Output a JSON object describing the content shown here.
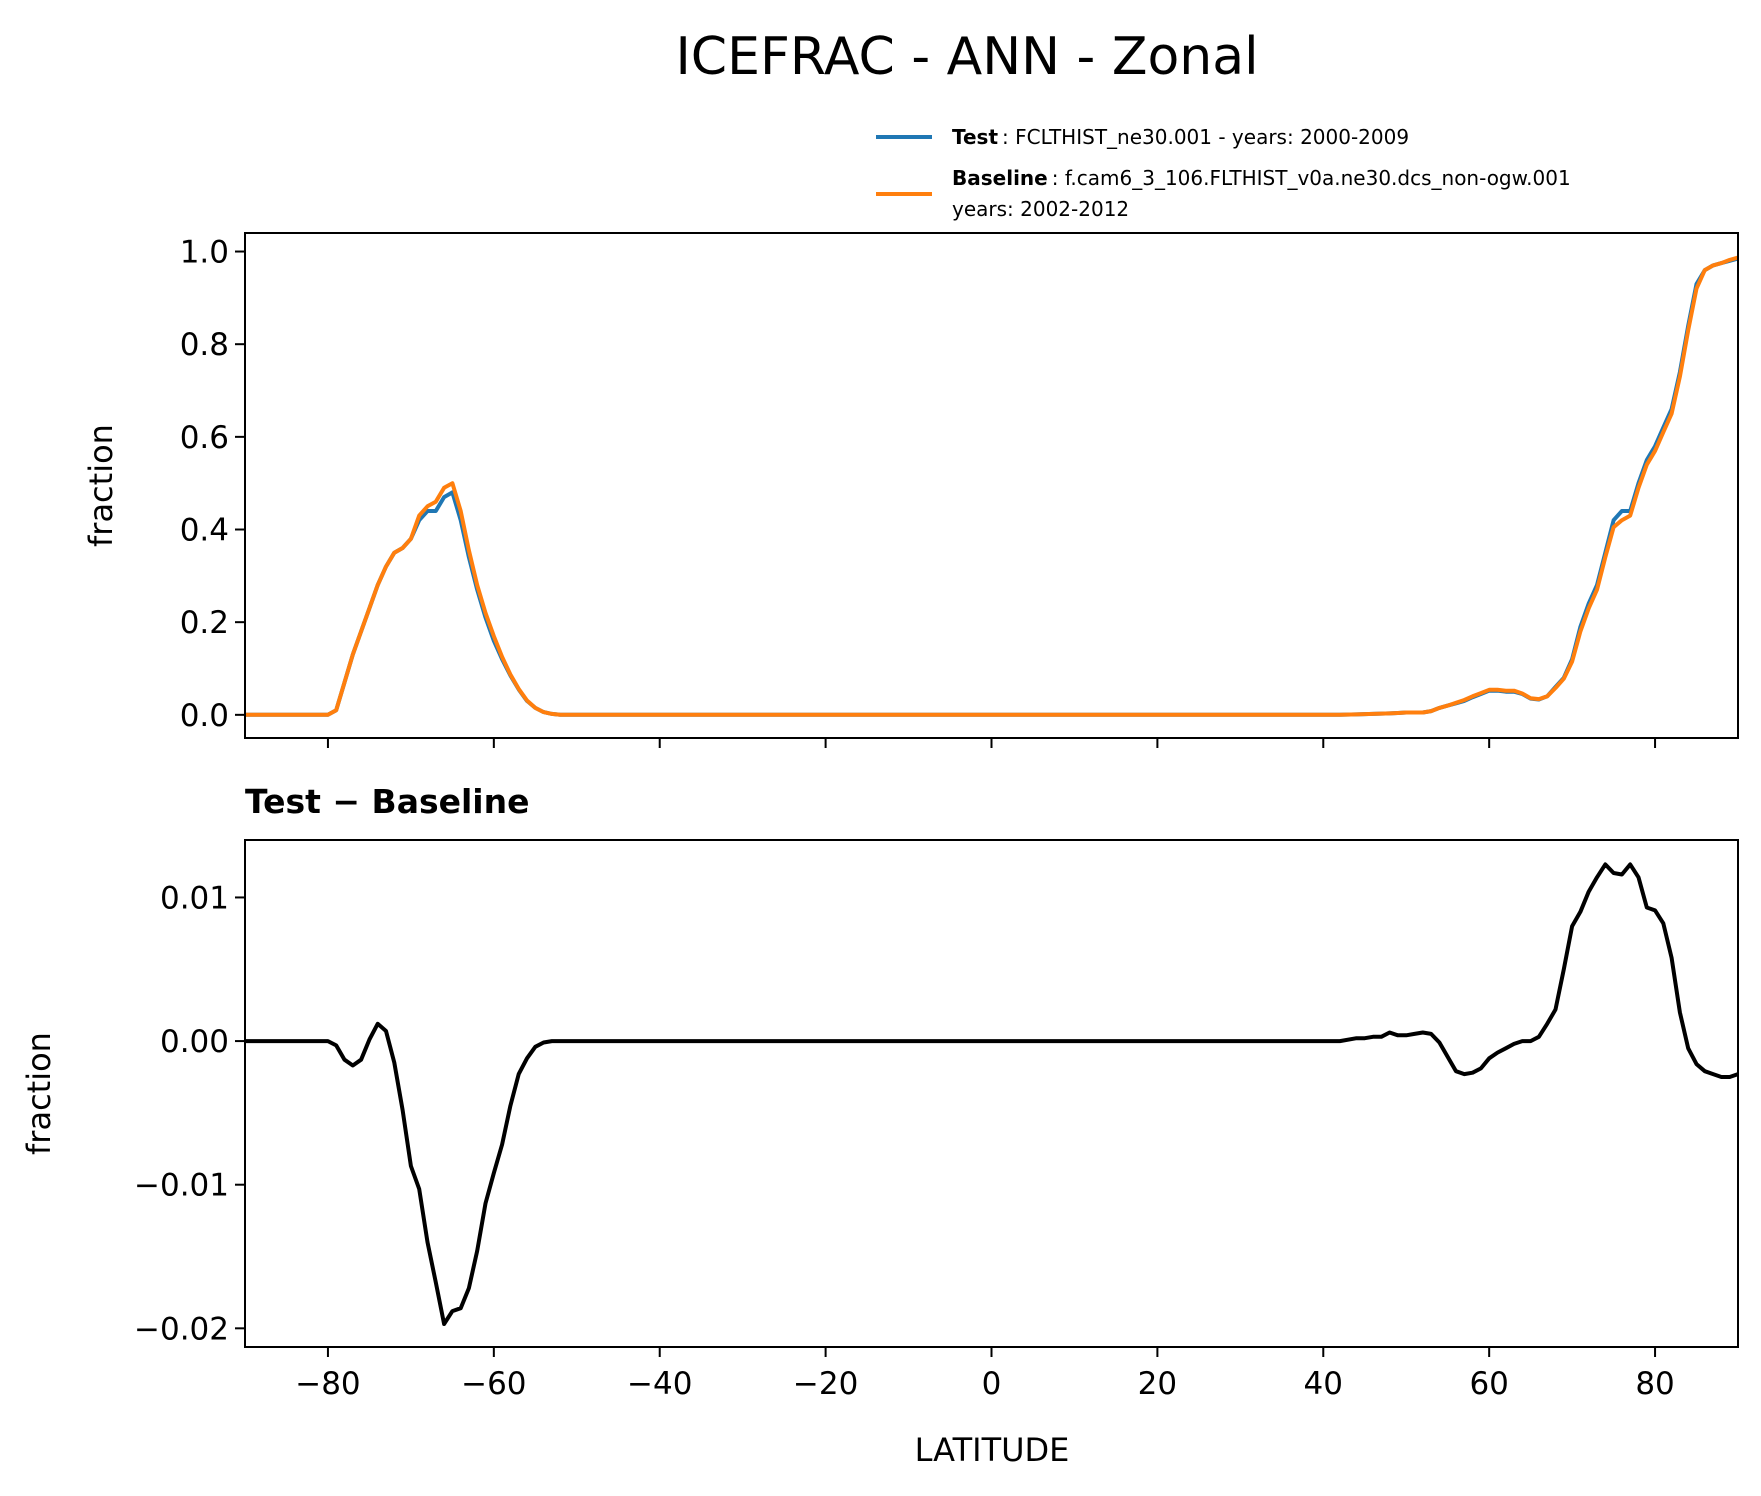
{
  "figure": {
    "title": "ICEFRAC - ANN - Zonal"
  },
  "legend": {
    "test_key": "Test",
    "test_text": ": FCLTHIST_ne30.001 - years: 2000-2009",
    "baseline_key": "Baseline",
    "baseline_text": ": f.cam6_3_106.FLTHIST_v0a.ne30.dcs_non-ogw.001",
    "baseline_text2": "years: 2002-2012"
  },
  "chart_data": [
    {
      "type": "line",
      "title": "",
      "xlabel": "",
      "ylabel": "fraction",
      "xlim": [
        -90,
        90
      ],
      "ylim": [
        -0.05,
        1.04
      ],
      "xticks": [
        -80,
        -60,
        -40,
        -20,
        0,
        20,
        40,
        60,
        80
      ],
      "yticks": [
        0.0,
        0.2,
        0.4,
        0.6,
        0.8,
        1.0
      ],
      "ytick_labels": [
        "0.0",
        "0.2",
        "0.4",
        "0.6",
        "0.8",
        "1.0"
      ],
      "legend_position": "above-right",
      "series": [
        {
          "name": "Test",
          "color": "#1f77b4",
          "x": [
            -90,
            -89,
            -88,
            -87,
            -86,
            -85,
            -84,
            -83,
            -82,
            -81,
            -80,
            -79,
            -78,
            -77,
            -76,
            -75,
            -74,
            -73,
            -72,
            -71,
            -70,
            -69,
            -68,
            -67,
            -66,
            -65,
            -64,
            -63,
            -62,
            -61,
            -60,
            -59,
            -58,
            -57,
            -56,
            -55,
            -54,
            -53,
            -52,
            -50,
            -40,
            -20,
            0,
            20,
            40,
            42,
            44,
            46,
            48,
            49,
            50,
            51,
            52,
            53,
            54,
            55,
            56,
            57,
            58,
            59,
            60,
            61,
            62,
            63,
            64,
            65,
            66,
            67,
            68,
            69,
            70,
            71,
            72,
            73,
            74,
            75,
            76,
            77,
            78,
            79,
            80,
            81,
            82,
            83,
            84,
            85,
            86,
            87,
            88,
            89,
            90
          ],
          "y": [
            0,
            0,
            0,
            0,
            0,
            0,
            0,
            0,
            0,
            0,
            0,
            0.01,
            0.07,
            0.13,
            0.18,
            0.23,
            0.28,
            0.32,
            0.35,
            0.36,
            0.38,
            0.42,
            0.44,
            0.44,
            0.47,
            0.48,
            0.42,
            0.34,
            0.27,
            0.21,
            0.16,
            0.12,
            0.085,
            0.055,
            0.03,
            0.015,
            0.006,
            0.002,
            0,
            0,
            0,
            0,
            0,
            0,
            0,
            0,
            0.001,
            0.002,
            0.003,
            0.004,
            0.005,
            0.005,
            0.005,
            0.008,
            0.015,
            0.02,
            0.025,
            0.03,
            0.038,
            0.045,
            0.052,
            0.052,
            0.05,
            0.05,
            0.045,
            0.035,
            0.033,
            0.04,
            0.06,
            0.08,
            0.12,
            0.19,
            0.24,
            0.28,
            0.35,
            0.42,
            0.44,
            0.44,
            0.5,
            0.55,
            0.58,
            0.62,
            0.66,
            0.74,
            0.84,
            0.93,
            0.96,
            0.97,
            0.975,
            0.98,
            0.985
          ]
        },
        {
          "name": "Baseline",
          "color": "#ff7f0e",
          "x": [
            -90,
            -89,
            -88,
            -87,
            -86,
            -85,
            -84,
            -83,
            -82,
            -81,
            -80,
            -79,
            -78,
            -77,
            -76,
            -75,
            -74,
            -73,
            -72,
            -71,
            -70,
            -69,
            -68,
            -67,
            -66,
            -65,
            -64,
            -63,
            -62,
            -61,
            -60,
            -59,
            -58,
            -57,
            -56,
            -55,
            -54,
            -53,
            -52,
            -50,
            -40,
            -20,
            0,
            20,
            40,
            42,
            44,
            46,
            48,
            49,
            50,
            51,
            52,
            53,
            54,
            55,
            56,
            57,
            58,
            59,
            60,
            61,
            62,
            63,
            64,
            65,
            66,
            67,
            68,
            69,
            70,
            71,
            72,
            73,
            74,
            75,
            76,
            77,
            78,
            79,
            80,
            81,
            82,
            83,
            84,
            85,
            86,
            87,
            88,
            89,
            90
          ],
          "y": [
            0,
            0,
            0,
            0,
            0,
            0,
            0,
            0,
            0,
            0,
            0,
            0.01,
            0.07,
            0.13,
            0.18,
            0.23,
            0.28,
            0.32,
            0.35,
            0.36,
            0.38,
            0.43,
            0.45,
            0.46,
            0.49,
            0.5,
            0.44,
            0.355,
            0.28,
            0.22,
            0.17,
            0.125,
            0.087,
            0.056,
            0.031,
            0.015,
            0.006,
            0.002,
            0,
            0,
            0,
            0,
            0,
            0,
            0,
            0,
            0.001,
            0.002,
            0.003,
            0.004,
            0.005,
            0.005,
            0.005,
            0.008,
            0.015,
            0.02,
            0.026,
            0.032,
            0.04,
            0.047,
            0.054,
            0.054,
            0.052,
            0.052,
            0.046,
            0.036,
            0.034,
            0.04,
            0.058,
            0.078,
            0.115,
            0.18,
            0.23,
            0.27,
            0.34,
            0.405,
            0.42,
            0.43,
            0.49,
            0.54,
            0.57,
            0.61,
            0.65,
            0.73,
            0.83,
            0.92,
            0.96,
            0.97,
            0.975,
            0.982,
            0.987
          ]
        }
      ]
    },
    {
      "type": "line",
      "title": "Test − Baseline",
      "xlabel": "LATITUDE",
      "ylabel": "fraction",
      "xlim": [
        -90,
        90
      ],
      "ylim": [
        -0.0213,
        0.014
      ],
      "xticks": [
        -80,
        -60,
        -40,
        -20,
        0,
        20,
        40,
        60,
        80
      ],
      "xtick_labels": [
        "−80",
        "−60",
        "−40",
        "−20",
        "0",
        "20",
        "40",
        "60",
        "80"
      ],
      "yticks": [
        -0.02,
        -0.01,
        0.0,
        0.01
      ],
      "ytick_labels": [
        "−0.02",
        "−0.01",
        "0.00",
        "0.01"
      ],
      "series": [
        {
          "color": "#000000",
          "x": [
            -90,
            -88,
            -86,
            -84,
            -82,
            -80,
            -79,
            -78,
            -77,
            -76,
            -75,
            -74,
            -73,
            -72,
            -71,
            -70,
            -69,
            -68,
            -67,
            -66,
            -65,
            -64,
            -63,
            -62,
            -61,
            -60,
            -59,
            -58,
            -57,
            -56,
            -55,
            -54,
            -53,
            -52,
            -50,
            -40,
            -20,
            0,
            20,
            40,
            42,
            44,
            45,
            46,
            47,
            48,
            49,
            50,
            51,
            52,
            53,
            54,
            55,
            56,
            57,
            58,
            59,
            60,
            61,
            62,
            63,
            64,
            65,
            66,
            67,
            68,
            69,
            70,
            71,
            72,
            73,
            74,
            75,
            76,
            77,
            78,
            79,
            80,
            81,
            82,
            83,
            84,
            85,
            86,
            87,
            88,
            89,
            90
          ],
          "y": [
            0,
            0,
            0,
            0,
            0,
            0,
            -0.0003,
            -0.0013,
            -0.0017,
            -0.0013,
            0.0001,
            0.0012,
            0.0007,
            -0.0015,
            -0.0048,
            -0.0087,
            -0.0103,
            -0.014,
            -0.0168,
            -0.0197,
            -0.0188,
            -0.0186,
            -0.0172,
            -0.0146,
            -0.0113,
            -0.0092,
            -0.0072,
            -0.0045,
            -0.0023,
            -0.0012,
            -0.0004,
            -0.0001,
            0,
            0,
            0,
            0,
            0,
            0,
            0,
            0,
            0,
            0.0002,
            0.0002,
            0.0003,
            0.0003,
            0.0006,
            0.0004,
            0.0004,
            0.0005,
            0.0006,
            0.0005,
            -0.0001,
            -0.0011,
            -0.0021,
            -0.0023,
            -0.0022,
            -0.0019,
            -0.0012,
            -0.0008,
            -0.0005,
            -0.0002,
            0,
            0,
            0.0003,
            0.0012,
            0.0022,
            0.005,
            0.008,
            0.009,
            0.0104,
            0.0114,
            0.0123,
            0.0117,
            0.0116,
            0.0123,
            0.0114,
            0.0093,
            0.0091,
            0.0082,
            0.0058,
            0.002,
            -0.0005,
            -0.0016,
            -0.0021,
            -0.0023,
            -0.0025,
            -0.0025,
            -0.0023
          ]
        }
      ]
    }
  ]
}
